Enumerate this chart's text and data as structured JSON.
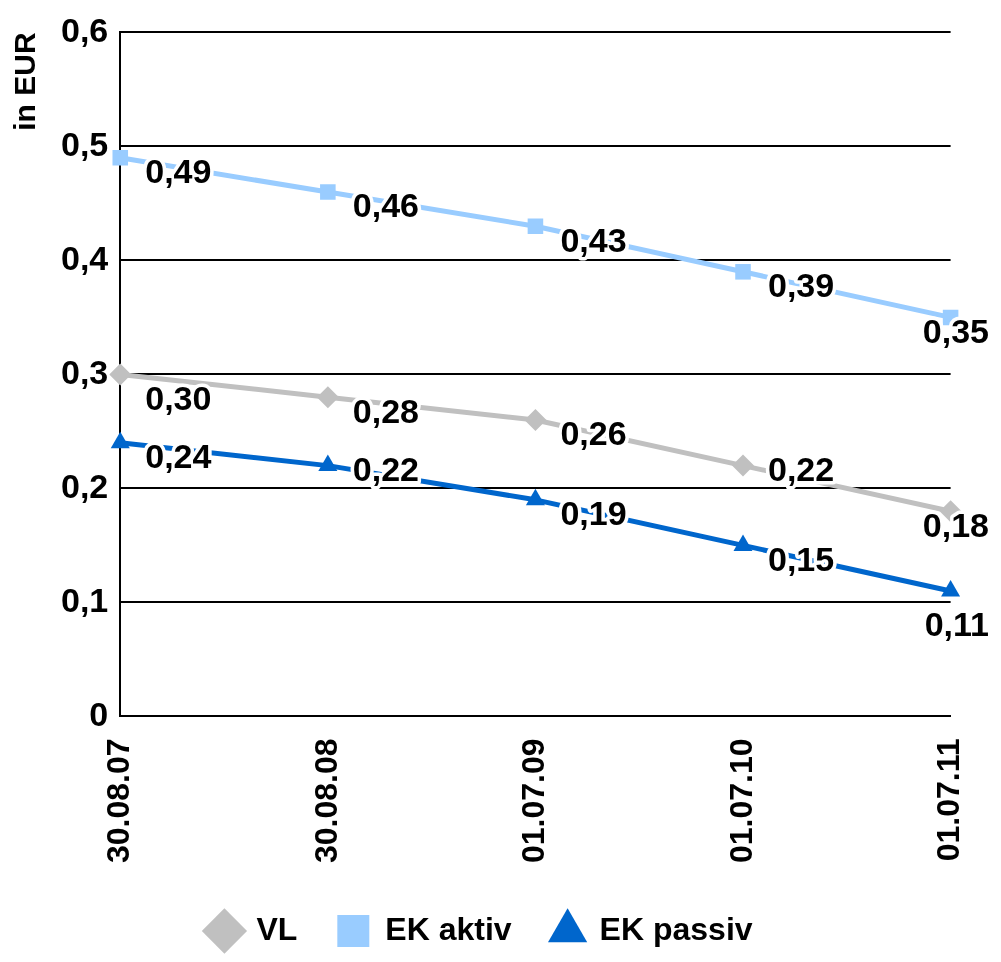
{
  "chart_data": {
    "type": "line",
    "ylabel": "in EUR",
    "categories": [
      "30.08.07",
      "30.08.08",
      "01.07.09",
      "01.07.10",
      "01.07.11"
    ],
    "ylim": [
      0,
      0.6
    ],
    "yticks": [
      {
        "value": 0,
        "label": "0"
      },
      {
        "value": 0.1,
        "label": "0,1"
      },
      {
        "value": 0.2,
        "label": "0,2"
      },
      {
        "value": 0.3,
        "label": "0,3"
      },
      {
        "value": 0.4,
        "label": "0,4"
      },
      {
        "value": 0.5,
        "label": "0,5"
      },
      {
        "value": 0.6,
        "label": "0,6"
      }
    ],
    "grid": "y",
    "legend": "bottom",
    "series": [
      {
        "name": "VL",
        "color": "#c0c0c0",
        "marker": "diamond",
        "values": [
          0.3,
          0.28,
          0.26,
          0.22,
          0.18
        ],
        "value_labels": [
          "0,30",
          "0,28",
          "0,26",
          "0,22",
          "0,18"
        ]
      },
      {
        "name": "EK aktiv",
        "color": "#99ccff",
        "marker": "square",
        "values": [
          0.49,
          0.46,
          0.43,
          0.39,
          0.35
        ],
        "value_labels": [
          "0,49",
          "0,46",
          "0,43",
          "0,39",
          "0,35"
        ]
      },
      {
        "name": "EK passiv",
        "color": "#0066cc",
        "marker": "triangle",
        "values": [
          0.24,
          0.22,
          0.19,
          0.15,
          0.11
        ],
        "value_labels": [
          "0,24",
          "0,22",
          "0,19",
          "0,15",
          "0,11"
        ]
      }
    ]
  }
}
